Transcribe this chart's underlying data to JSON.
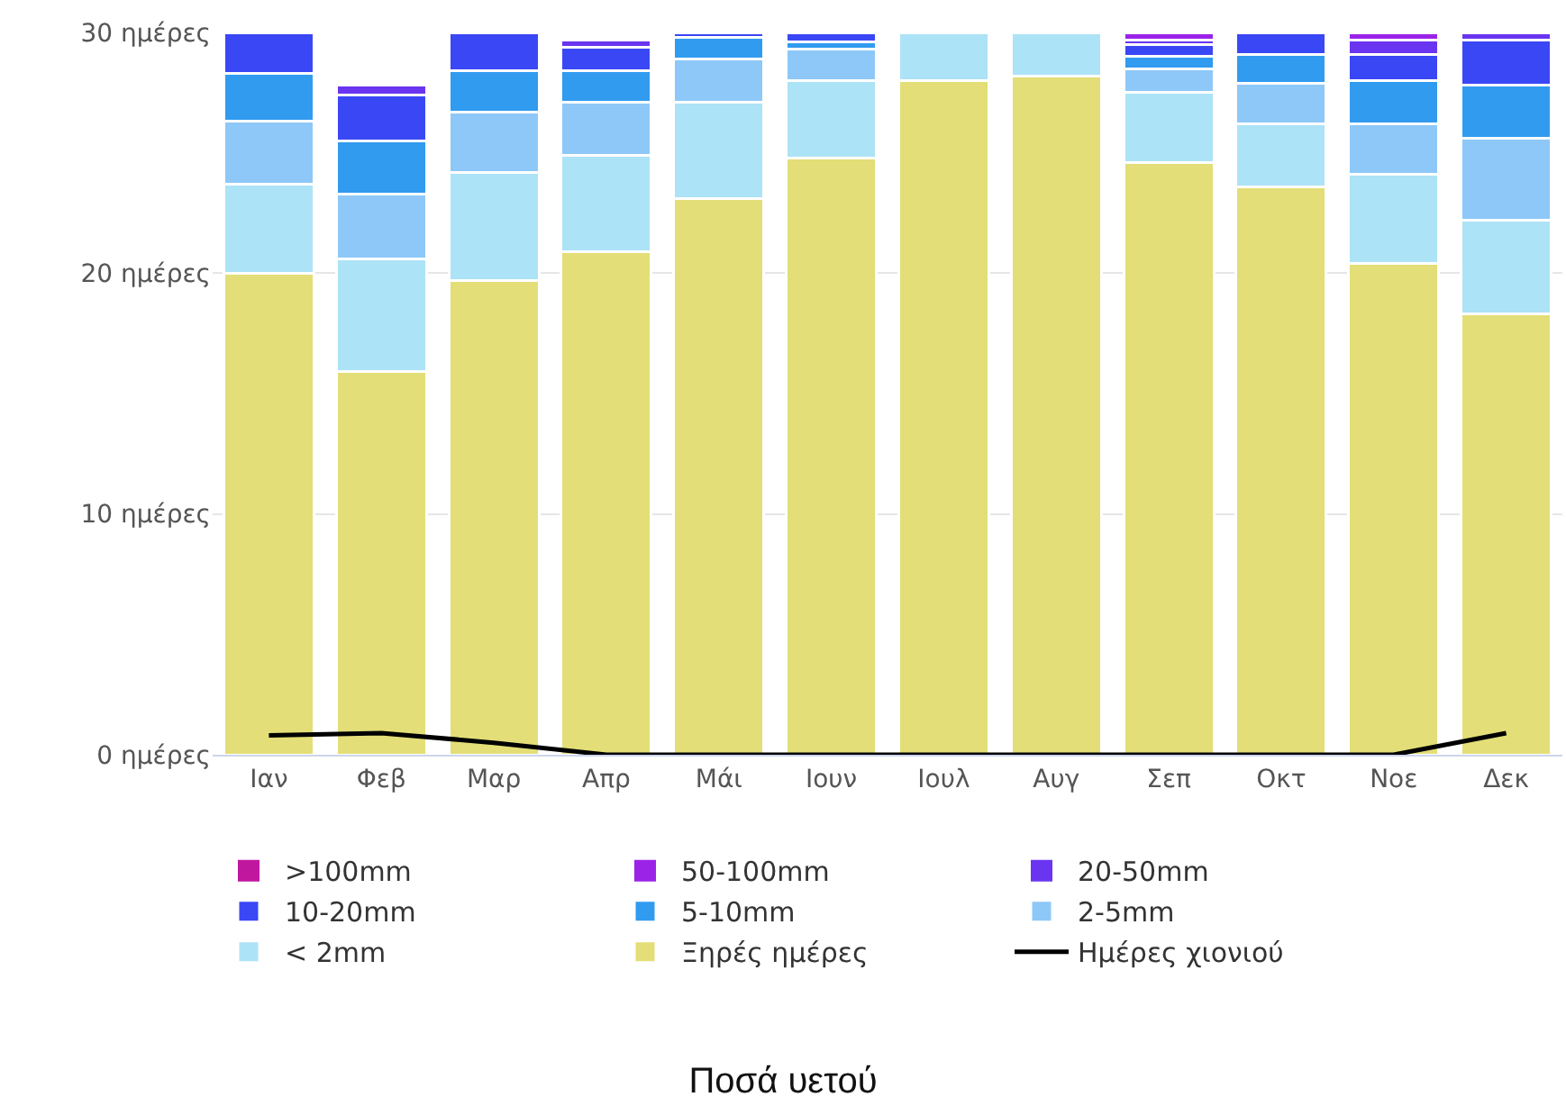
{
  "chart_data": {
    "type": "bar",
    "title": "Ποσά υετού",
    "stacked": true,
    "categories": [
      "Ιαν",
      "Φεβ",
      "Μαρ",
      "Απρ",
      "Μάι",
      "Ιουν",
      "Ιουλ",
      "Αυγ",
      "Σεπ",
      "Οκτ",
      "Νοε",
      "Δεκ"
    ],
    "series": [
      {
        "name": "Ξηρές ημέρες",
        "color": "#e3de77",
        "values": [
          20.0,
          15.9,
          19.7,
          20.9,
          23.1,
          24.8,
          28.0,
          28.2,
          24.6,
          23.6,
          20.4,
          18.3
        ]
      },
      {
        "name": "< 2mm",
        "color": "#ade3f6",
        "values": [
          3.7,
          4.7,
          4.5,
          4.0,
          4.0,
          3.2,
          2.0,
          1.8,
          2.9,
          2.6,
          3.7,
          3.9
        ]
      },
      {
        "name": "2-5mm",
        "color": "#8ec8f8",
        "values": [
          2.6,
          2.7,
          2.5,
          2.2,
          1.8,
          1.3,
          0,
          0,
          1.0,
          1.7,
          2.1,
          3.4
        ]
      },
      {
        "name": "5-10mm",
        "color": "#319bf0",
        "values": [
          2.0,
          2.2,
          1.7,
          1.3,
          0.9,
          0.3,
          0,
          0,
          0.5,
          1.2,
          1.8,
          2.2
        ]
      },
      {
        "name": "10-20mm",
        "color": "#3a47f5",
        "values": [
          1.7,
          1.9,
          1.6,
          1.0,
          0.2,
          0.4,
          0,
          0,
          0.5,
          0.9,
          1.1,
          1.9
        ]
      },
      {
        "name": "20-50mm",
        "color": "#6a35f0",
        "values": [
          0,
          0.4,
          0,
          0.3,
          0,
          0,
          0,
          0,
          0.2,
          0,
          0.6,
          0.3
        ]
      },
      {
        "name": "50-100mm",
        "color": "#9b23e8",
        "values": [
          0,
          0,
          0,
          0,
          0,
          0,
          0,
          0,
          0.3,
          0,
          0.3,
          0
        ]
      },
      {
        "name": ">100mm",
        "color": "#c0179f",
        "values": [
          0,
          0,
          0,
          0,
          0,
          0,
          0,
          0,
          0,
          0,
          0,
          0
        ]
      },
      {
        "name": "Ημέρες χιονιού",
        "type": "line",
        "color": "#000000",
        "values": [
          0.8,
          0.9,
          0.5,
          0,
          0,
          0,
          0,
          0,
          0,
          0,
          0,
          0.9
        ]
      }
    ],
    "ylim": [
      0,
      30
    ],
    "yticks": [
      {
        "value": 0,
        "label": "0 ημέρες"
      },
      {
        "value": 10,
        "label": "10 ημέρες"
      },
      {
        "value": 20,
        "label": "20 ημέρες"
      },
      {
        "value": 30,
        "label": "30 ημέρες"
      }
    ],
    "grid": "y",
    "legend": "bottom",
    "marker": "none",
    "line_style": "solid"
  }
}
